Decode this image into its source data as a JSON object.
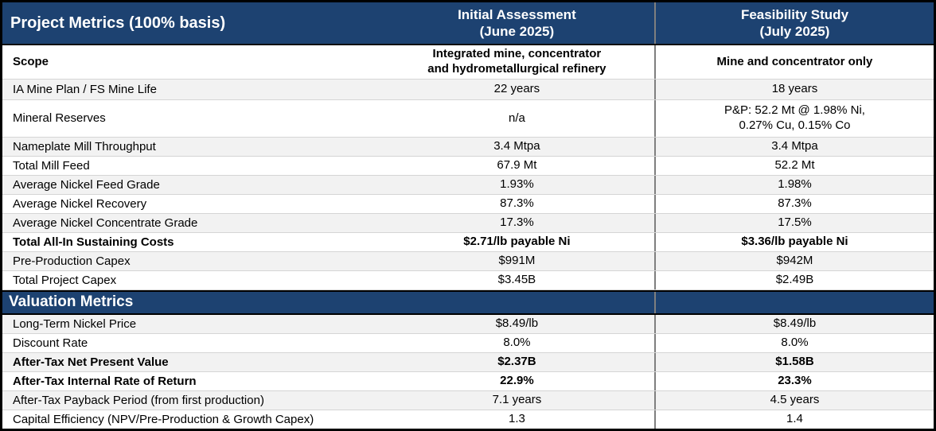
{
  "chart_data": {
    "type": "table",
    "title": "Project Metrics (100% basis)",
    "columns": [
      "Project Metrics (100% basis)",
      "Initial Assessment (June 2025)",
      "Feasibility Study (July 2025)"
    ],
    "sections": [
      {
        "name": "Project Metrics (100% basis)",
        "rows": [
          [
            "Scope",
            "Integrated mine, concentrator and hydrometallurgical refinery",
            "Mine and concentrator only"
          ],
          [
            "IA Mine Plan / FS Mine Life",
            "22 years",
            "18 years"
          ],
          [
            "Mineral Reserves",
            "n/a",
            "P&P: 52.2 Mt @ 1.98% Ni, 0.27% Cu, 0.15% Co"
          ],
          [
            "Nameplate Mill Throughput",
            "3.4 Mtpa",
            "3.4 Mtpa"
          ],
          [
            "Total Mill Feed",
            "67.9 Mt",
            "52.2 Mt"
          ],
          [
            "Average Nickel Feed Grade",
            "1.93%",
            "1.98%"
          ],
          [
            "Average Nickel Recovery",
            "87.3%",
            "87.3%"
          ],
          [
            "Average Nickel Concentrate Grade",
            "17.3%",
            "17.5%"
          ],
          [
            "Total All-In Sustaining Costs",
            "$2.71/lb payable Ni",
            "$3.36/lb payable Ni"
          ],
          [
            "Pre-Production Capex",
            "$991M",
            "$942M"
          ],
          [
            "Total Project Capex",
            "$3.45B",
            "$2.49B"
          ]
        ]
      },
      {
        "name": "Valuation Metrics",
        "rows": [
          [
            "Long-Term Nickel Price",
            "$8.49/lb",
            "$8.49/lb"
          ],
          [
            "Discount Rate",
            "8.0%",
            "8.0%"
          ],
          [
            "After-Tax Net Present Value",
            "$2.37B",
            "$1.58B"
          ],
          [
            "After-Tax Internal Rate of Return",
            "22.9%",
            "23.3%"
          ],
          [
            "After-Tax Payback Period (from first production)",
            "7.1 years",
            "4.5 years"
          ],
          [
            "Capital Efficiency (NPV/Pre-Production & Growth Capex)",
            "1.3",
            "1.4"
          ]
        ]
      }
    ]
  },
  "colors": {
    "header_navy": "#1d4271",
    "stripe_gray": "#f2f2f2",
    "outer_border": "#000000",
    "row_divider": "#d5d5d5",
    "column_separator": "#7f7f7f"
  },
  "header": {
    "title": "Project Metrics (100% basis)",
    "col_ia": "Initial Assessment\n(June 2025)",
    "col_fs": "Feasibility Study\n(July 2025)"
  },
  "project_rows": [
    {
      "label": "Scope",
      "ia": "Integrated mine, concentrator\nand hydrometallurgical refinery",
      "fs": "Mine and concentrator only",
      "bold": true
    },
    {
      "label": "IA Mine Plan / FS Mine Life",
      "ia": "22 years",
      "fs": "18 years",
      "bold": false
    },
    {
      "label": "Mineral Reserves",
      "ia": "n/a",
      "fs": "P&P: 52.2 Mt @ 1.98% Ni,\n0.27% Cu, 0.15% Co",
      "bold": false
    },
    {
      "label": "Nameplate Mill Throughput",
      "ia": "3.4 Mtpa",
      "fs": "3.4 Mtpa",
      "bold": false
    },
    {
      "label": "Total Mill Feed",
      "ia": "67.9 Mt",
      "fs": "52.2 Mt",
      "bold": false
    },
    {
      "label": "Average Nickel Feed Grade",
      "ia": "1.93%",
      "fs": "1.98%",
      "bold": false
    },
    {
      "label": "Average Nickel Recovery",
      "ia": "87.3%",
      "fs": "87.3%",
      "bold": false
    },
    {
      "label": "Average Nickel Concentrate Grade",
      "ia": "17.3%",
      "fs": "17.5%",
      "bold": false
    },
    {
      "label": "Total All-In Sustaining Costs",
      "ia": "$2.71/lb payable Ni",
      "fs": "$3.36/lb payable Ni",
      "bold": true
    },
    {
      "label": "Pre-Production Capex",
      "ia": "$991M",
      "fs": "$942M",
      "bold": false
    },
    {
      "label": "Total Project Capex",
      "ia": "$3.45B",
      "fs": "$2.49B",
      "bold": false
    }
  ],
  "valuation": {
    "section_title": "Valuation Metrics",
    "rows": [
      {
        "label": "Long-Term Nickel Price",
        "ia": "$8.49/lb",
        "fs": "$8.49/lb",
        "bold": false
      },
      {
        "label": "Discount Rate",
        "ia": "8.0%",
        "fs": "8.0%",
        "bold": false
      },
      {
        "label": "After-Tax Net Present Value",
        "ia": "$2.37B",
        "fs": "$1.58B",
        "bold": true
      },
      {
        "label": "After-Tax Internal Rate of Return",
        "ia": "22.9%",
        "fs": "23.3%",
        "bold": true
      },
      {
        "label": "After-Tax Payback Period (from first production)",
        "ia": "7.1 years",
        "fs": "4.5 years",
        "bold": false
      },
      {
        "label": "Capital Efficiency (NPV/Pre-Production & Growth Capex)",
        "ia": "1.3",
        "fs": "1.4",
        "bold": false
      }
    ]
  }
}
